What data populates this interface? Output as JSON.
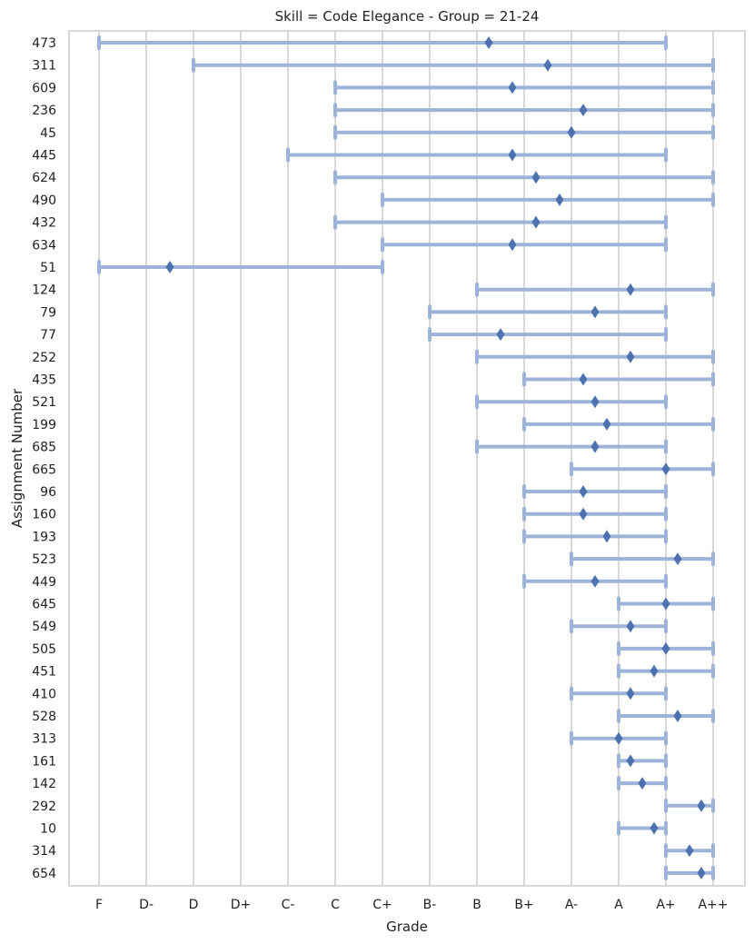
{
  "chart_data": {
    "type": "range",
    "title": "Skill = Code Elegance - Group = 21-24",
    "xlabel": "Grade",
    "ylabel": "Assignment Number",
    "x_ticks": [
      "F",
      "D-",
      "D",
      "D+",
      "C-",
      "C",
      "C+",
      "B-",
      "B",
      "B+",
      "A-",
      "A",
      "A+",
      "A++"
    ],
    "grid": "vertical",
    "colors": {
      "range": "#9db3d9",
      "marker": "#4c72b0",
      "grid": "#cccccc"
    },
    "rows": [
      {
        "id": "473",
        "min": 0,
        "max": 12,
        "mean": 8.25
      },
      {
        "id": "311",
        "min": 2,
        "max": 13,
        "mean": 9.5
      },
      {
        "id": "609",
        "min": 5,
        "max": 13,
        "mean": 8.75
      },
      {
        "id": "236",
        "min": 5,
        "max": 13,
        "mean": 10.25
      },
      {
        "id": "45",
        "min": 5,
        "max": 13,
        "mean": 10.0
      },
      {
        "id": "445",
        "min": 4,
        "max": 12,
        "mean": 8.75
      },
      {
        "id": "624",
        "min": 5,
        "max": 13,
        "mean": 9.25
      },
      {
        "id": "490",
        "min": 6,
        "max": 13,
        "mean": 9.75
      },
      {
        "id": "432",
        "min": 5,
        "max": 12,
        "mean": 9.25
      },
      {
        "id": "634",
        "min": 6,
        "max": 12,
        "mean": 8.75
      },
      {
        "id": "51",
        "min": 0,
        "max": 6,
        "mean": 1.5
      },
      {
        "id": "124",
        "min": 8,
        "max": 13,
        "mean": 11.25
      },
      {
        "id": "79",
        "min": 7,
        "max": 12,
        "mean": 10.5
      },
      {
        "id": "77",
        "min": 7,
        "max": 12,
        "mean": 8.5
      },
      {
        "id": "252",
        "min": 8,
        "max": 13,
        "mean": 11.25
      },
      {
        "id": "435",
        "min": 9,
        "max": 13,
        "mean": 10.25
      },
      {
        "id": "521",
        "min": 8,
        "max": 12,
        "mean": 10.5
      },
      {
        "id": "199",
        "min": 9,
        "max": 13,
        "mean": 10.75
      },
      {
        "id": "685",
        "min": 8,
        "max": 12,
        "mean": 10.5
      },
      {
        "id": "665",
        "min": 10,
        "max": 13,
        "mean": 12.0
      },
      {
        "id": "96",
        "min": 9,
        "max": 12,
        "mean": 10.25
      },
      {
        "id": "160",
        "min": 9,
        "max": 12,
        "mean": 10.25
      },
      {
        "id": "193",
        "min": 9,
        "max": 12,
        "mean": 10.75
      },
      {
        "id": "523",
        "min": 10,
        "max": 13,
        "mean": 12.25
      },
      {
        "id": "449",
        "min": 9,
        "max": 12,
        "mean": 10.5
      },
      {
        "id": "645",
        "min": 11,
        "max": 13,
        "mean": 12.0
      },
      {
        "id": "549",
        "min": 10,
        "max": 12,
        "mean": 11.25
      },
      {
        "id": "505",
        "min": 11,
        "max": 13,
        "mean": 12.0
      },
      {
        "id": "451",
        "min": 11,
        "max": 13,
        "mean": 11.75
      },
      {
        "id": "410",
        "min": 10,
        "max": 12,
        "mean": 11.25
      },
      {
        "id": "528",
        "min": 11,
        "max": 13,
        "mean": 12.25
      },
      {
        "id": "313",
        "min": 10,
        "max": 12,
        "mean": 11.0
      },
      {
        "id": "161",
        "min": 11,
        "max": 12,
        "mean": 11.25
      },
      {
        "id": "142",
        "min": 11,
        "max": 12,
        "mean": 11.5
      },
      {
        "id": "292",
        "min": 12,
        "max": 13,
        "mean": 12.75
      },
      {
        "id": "10",
        "min": 11,
        "max": 12,
        "mean": 11.75
      },
      {
        "id": "314",
        "min": 12,
        "max": 13,
        "mean": 12.5
      },
      {
        "id": "654",
        "min": 12,
        "max": 13,
        "mean": 12.75
      }
    ]
  }
}
